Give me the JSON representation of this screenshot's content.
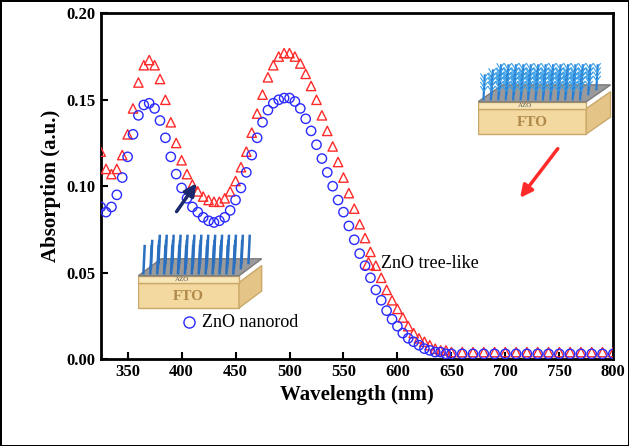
{
  "chart_data": {
    "type": "scatter",
    "x_label": "Wavelength (nm)",
    "y_label": "Absorption (a.u.)",
    "x": [
      325,
      330,
      335,
      340,
      345,
      350,
      355,
      360,
      365,
      370,
      375,
      380,
      385,
      390,
      395,
      400,
      405,
      410,
      415,
      420,
      425,
      430,
      435,
      440,
      445,
      450,
      455,
      460,
      465,
      470,
      475,
      480,
      485,
      490,
      495,
      500,
      505,
      510,
      515,
      520,
      525,
      530,
      535,
      540,
      545,
      550,
      555,
      560,
      565,
      570,
      575,
      580,
      585,
      590,
      595,
      600,
      605,
      610,
      615,
      620,
      625,
      630,
      635,
      640,
      645,
      650,
      660,
      670,
      680,
      690,
      700,
      710,
      720,
      730,
      740,
      750,
      760,
      770,
      780,
      790,
      800
    ],
    "series": [
      {
        "name": "ZnO tree-like",
        "color": "#ff2a2a",
        "marker": "^",
        "values": [
          0.12,
          0.11,
          0.107,
          0.11,
          0.118,
          0.13,
          0.145,
          0.16,
          0.17,
          0.173,
          0.17,
          0.162,
          0.15,
          0.137,
          0.125,
          0.115,
          0.107,
          0.101,
          0.097,
          0.094,
          0.092,
          0.091,
          0.091,
          0.093,
          0.097,
          0.103,
          0.111,
          0.12,
          0.131,
          0.142,
          0.153,
          0.163,
          0.17,
          0.175,
          0.177,
          0.177,
          0.175,
          0.171,
          0.165,
          0.158,
          0.15,
          0.141,
          0.132,
          0.123,
          0.114,
          0.105,
          0.096,
          0.087,
          0.078,
          0.07,
          0.062,
          0.054,
          0.047,
          0.04,
          0.034,
          0.029,
          0.024,
          0.019,
          0.015,
          0.012,
          0.01,
          0.008,
          0.006,
          0.005,
          0.005,
          0.004,
          0.004,
          0.004,
          0.004,
          0.004,
          0.004,
          0.004,
          0.004,
          0.004,
          0.004,
          0.004,
          0.004,
          0.004,
          0.004,
          0.004,
          0.004
        ]
      },
      {
        "name": "ZnO nanorod",
        "color": "#2a2aff",
        "marker": "o",
        "values": [
          0.088,
          0.085,
          0.088,
          0.095,
          0.105,
          0.117,
          0.13,
          0.141,
          0.147,
          0.148,
          0.145,
          0.138,
          0.128,
          0.117,
          0.107,
          0.099,
          0.093,
          0.088,
          0.085,
          0.082,
          0.08,
          0.079,
          0.08,
          0.082,
          0.086,
          0.092,
          0.099,
          0.108,
          0.118,
          0.128,
          0.137,
          0.144,
          0.148,
          0.15,
          0.151,
          0.151,
          0.149,
          0.145,
          0.139,
          0.132,
          0.124,
          0.116,
          0.108,
          0.1,
          0.092,
          0.085,
          0.077,
          0.069,
          0.061,
          0.054,
          0.047,
          0.04,
          0.034,
          0.028,
          0.023,
          0.019,
          0.015,
          0.012,
          0.01,
          0.008,
          0.006,
          0.005,
          0.004,
          0.004,
          0.003,
          0.003,
          0.003,
          0.003,
          0.003,
          0.003,
          0.003,
          0.003,
          0.003,
          0.003,
          0.003,
          0.003,
          0.003,
          0.003,
          0.003,
          0.003,
          0.003
        ]
      }
    ],
    "xlim": [
      325,
      800
    ],
    "xticks": [
      350,
      400,
      450,
      500,
      550,
      600,
      650,
      700,
      750,
      800
    ],
    "ylim": [
      0,
      0.2
    ],
    "yticks": [
      {
        "value": 0,
        "label": "0.00"
      },
      {
        "value": 0.05,
        "label": "0.05"
      },
      {
        "value": 0.1,
        "label": "0.10"
      },
      {
        "value": 0.15,
        "label": "0.15"
      },
      {
        "value": 0.2,
        "label": "0.20"
      }
    ],
    "inset_labels": [
      "AZO",
      "FTO"
    ]
  }
}
